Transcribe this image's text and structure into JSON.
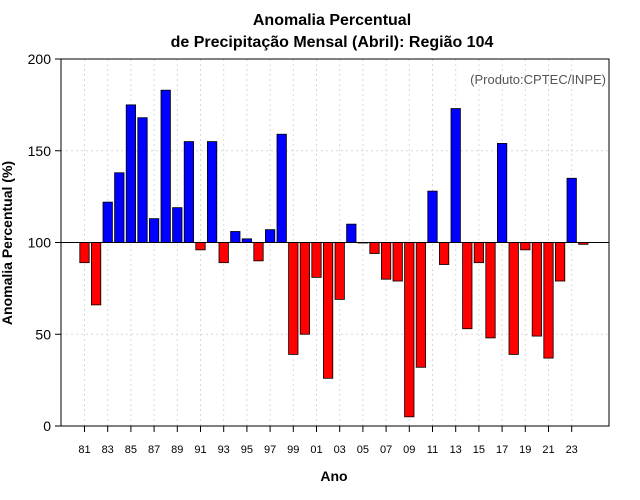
{
  "chart_data": {
    "type": "bar",
    "title": [
      "Anomalia Percentual",
      "de Precipitação Mensal (Abril): Região 104"
    ],
    "note": "(Produto:CPTEC/INPE)",
    "xlabel": "Ano",
    "ylabel": "Anomalia Percentual (%)",
    "baseline": 100,
    "ylim": [
      0,
      200
    ],
    "yticks": [
      0,
      50,
      100,
      150,
      200
    ],
    "xtick_labels": [
      "81",
      "83",
      "85",
      "87",
      "89",
      "91",
      "93",
      "95",
      "97",
      "99",
      "01",
      "03",
      "05",
      "07",
      "09",
      "11",
      "13",
      "15",
      "17",
      "19",
      "21",
      "23"
    ],
    "categories": [
      "1981",
      "1982",
      "1983",
      "1984",
      "1985",
      "1986",
      "1987",
      "1988",
      "1989",
      "1990",
      "1991",
      "1992",
      "1993",
      "1994",
      "1995",
      "1996",
      "1997",
      "1998",
      "1999",
      "2000",
      "2001",
      "2002",
      "2003",
      "2004",
      "2005",
      "2006",
      "2007",
      "2008",
      "2009",
      "2010",
      "2011",
      "2012",
      "2013",
      "2014",
      "2015",
      "2016",
      "2017",
      "2018",
      "2019",
      "2020",
      "2021",
      "2022",
      "2023",
      "2024"
    ],
    "values": [
      89,
      66,
      122,
      138,
      175,
      168,
      113,
      183,
      119,
      155,
      96,
      155,
      89,
      106,
      102,
      90,
      107,
      159,
      39,
      50,
      81,
      26,
      69,
      110,
      100,
      94,
      80,
      79,
      5,
      32,
      128,
      88,
      173,
      53,
      89,
      48,
      154,
      39,
      96,
      49,
      37,
      79,
      135,
      99
    ],
    "colors": {
      "above": "#0000ff",
      "below": "#ff0000"
    }
  }
}
